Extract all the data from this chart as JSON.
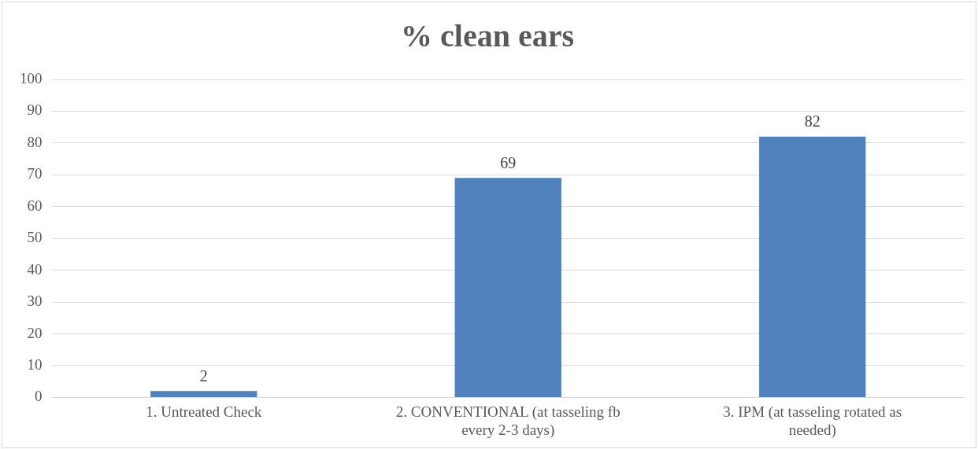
{
  "chart_data": {
    "type": "bar",
    "title": "% clean ears",
    "categories": [
      "1. Untreated Check",
      "2. CONVENTIONAL (at tasseling fb every 2-3 days)",
      "3. IPM (at tasseling rotated as needed)"
    ],
    "values": [
      2,
      69,
      82
    ],
    "color": "#4f81bd",
    "ylim": [
      0,
      100
    ],
    "yticks": [
      0,
      10,
      20,
      30,
      40,
      50,
      60,
      70,
      80,
      90,
      100
    ],
    "grid": "y",
    "data_labels": true,
    "legend": false
  }
}
